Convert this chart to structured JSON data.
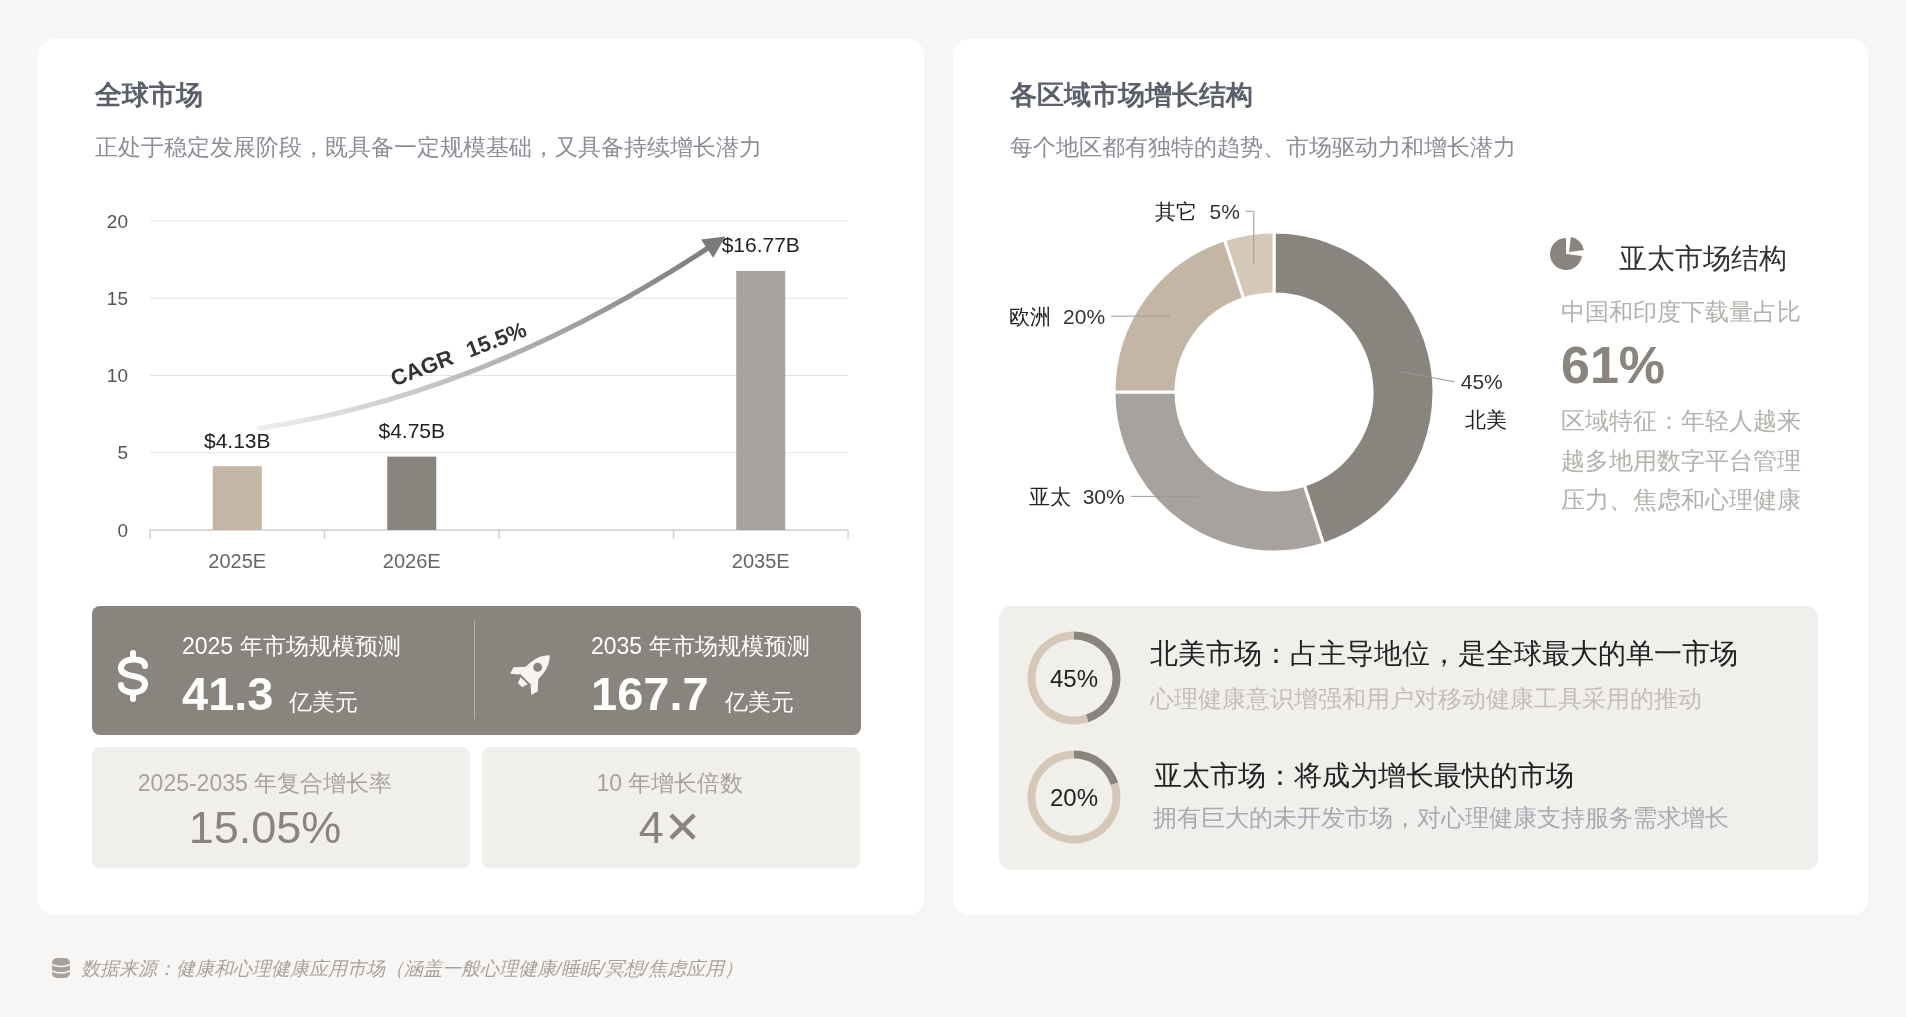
{
  "chart_data": [
    {
      "type": "bar",
      "title": "全球市场",
      "subtitle": "正处于稳定发展阶段，既具备一定规模基础，又具备持续增长潜力",
      "categories": [
        "2025E",
        "2026E",
        null,
        "2035E"
      ],
      "values": [
        4.13,
        4.75,
        null,
        16.77
      ],
      "colors": [
        "#c4b5a5",
        "#8a847e",
        null,
        "#a8a29e"
      ],
      "value_labels": [
        "$4.13B",
        "$4.75B",
        null,
        "$16.77B"
      ],
      "ylim": [
        0,
        20
      ],
      "yticks": [
        0,
        5,
        10,
        15,
        20
      ],
      "grid": "y",
      "annotations": [
        "CAGR 15.5%"
      ]
    },
    {
      "type": "other",
      "title": "2025 年市场规模预测",
      "annotations": [
        "41.3",
        "亿美元"
      ]
    },
    {
      "type": "other",
      "title": "2035 年市场规模预测",
      "annotations": [
        "167.7",
        "亿美元"
      ]
    },
    {
      "type": "other",
      "title": "2025-2035 年复合增长率",
      "annotations": [
        "15.05%"
      ]
    },
    {
      "type": "other",
      "title": "10 年增长倍数",
      "annotations": [
        "4✕"
      ]
    },
    {
      "type": "donut",
      "title": "各区域市场增长结构",
      "subtitle": "每个地区都有独特的趋势、市场驱动力和增长潜力",
      "categories": [
        "北美",
        "亚太",
        "欧洲",
        "其它"
      ],
      "values": [
        45,
        30,
        20,
        5
      ],
      "colors": [
        "#8a847e",
        "#a8a29e",
        "#c4b5a5",
        "#d6c8b7"
      ],
      "value_labels": [
        "45%",
        "30%",
        "20%",
        "5%"
      ]
    },
    {
      "type": "other",
      "title": "亚太市场结构",
      "subtitle": "中国和印度下载量占比",
      "annotations": [
        "61%",
        "区域特征：年轻人越来越多地用数字平台管理压力、焦虑和心理健康"
      ]
    },
    {
      "type": "donut",
      "title": "北美市场：占主导地位，是全球最大的单一市场",
      "subtitle": "心理健康意识增强和用户对移动健康工具采用的推动",
      "categories": [
        null,
        null
      ],
      "values": [
        45,
        55
      ],
      "colors": [
        "#8a847e",
        "#d6c8b7"
      ],
      "value_labels": [
        "45%",
        null
      ]
    },
    {
      "type": "donut",
      "title": "亚太市场：将成为增长最快的市场",
      "subtitle": "拥有巨大的未开发市场，对心理健康支持服务需求增长",
      "categories": [
        null,
        null
      ],
      "values": [
        20,
        80
      ],
      "colors": [
        "#8a847e",
        "#d6c8b7"
      ],
      "value_labels": [
        "20%",
        null
      ]
    },
    {
      "type": "other",
      "annotations": [
        "数据来源：健康和心理健康应用市场（涵盖一般心理健康/睡眠/冥想/焦虑应用）"
      ]
    }
  ]
}
